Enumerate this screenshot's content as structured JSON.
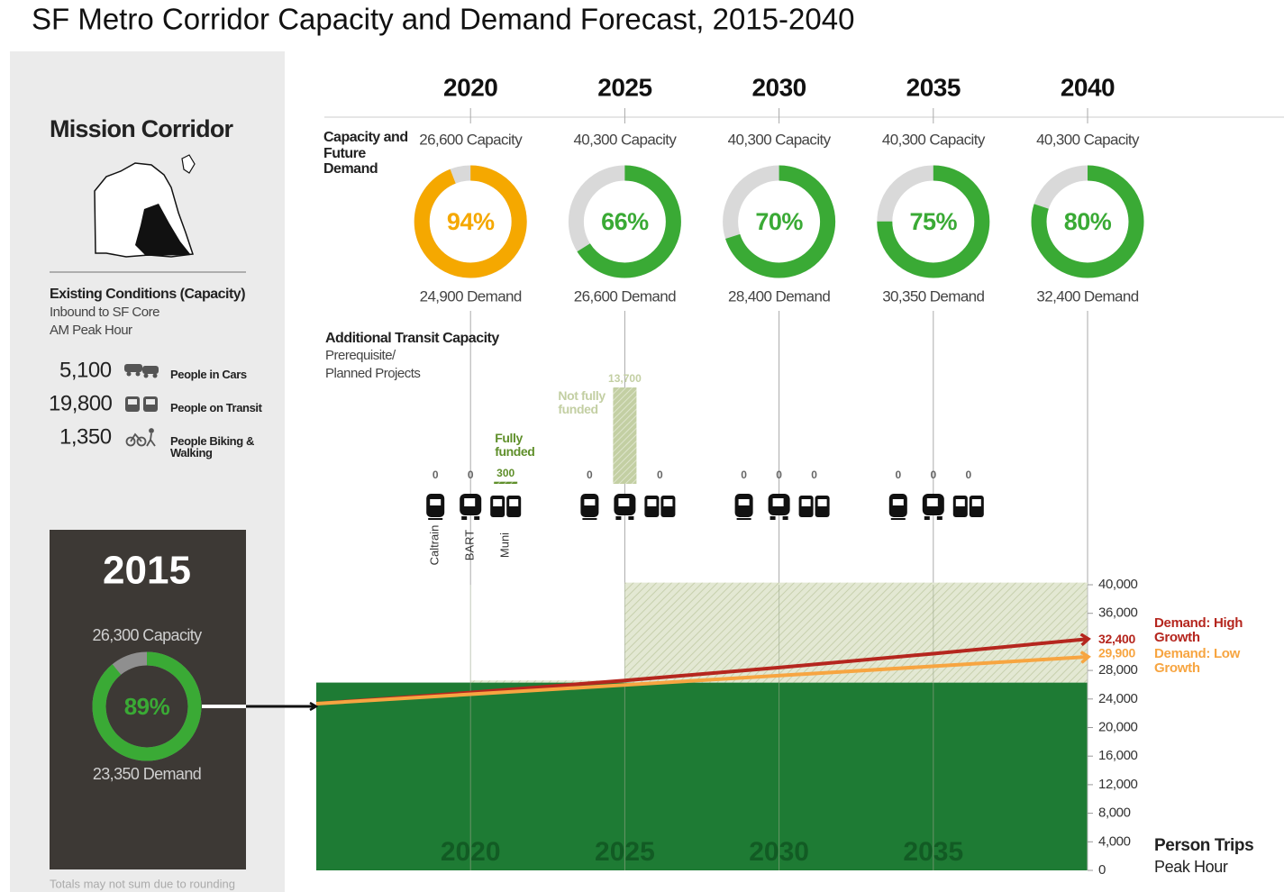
{
  "title": "SF Metro Corridor Capacity and Demand Forecast, 2015-2040",
  "sidebar": {
    "heading": "Mission Corridor",
    "existing_title": "Existing Conditions (Capacity)",
    "existing_lines": [
      "Inbound to SF Core",
      "AM Peak Hour"
    ],
    "modes": [
      {
        "value": "5,100",
        "label": "People in Cars"
      },
      {
        "value": "19,800",
        "label": "People on Transit"
      },
      {
        "value": "1,350",
        "label": "People Biking & Walking"
      }
    ],
    "base": {
      "year": "2015",
      "capacity": "26,300 Capacity",
      "percent": 89,
      "percent_label": "89%",
      "color": "#3aaa35",
      "demand": "23,350 Demand"
    },
    "footnote": "Totals may not sum due to rounding"
  },
  "forecast": {
    "row_label": "Capacity and Future Demand",
    "projects_title": "Additional Transit Capacity",
    "projects_subtitle": [
      "Prerequisite/",
      "Planned Projects"
    ],
    "modes": [
      "Caltrain",
      "BART",
      "Muni"
    ],
    "years": [
      {
        "year": "2020",
        "capacity": "26,600 Capacity",
        "percent": 94,
        "percent_label": "94%",
        "color": "#f5a800",
        "demand": "24,900 Demand",
        "projects": {
          "values": [
            0,
            0,
            300
          ],
          "note": "Fully funded",
          "note_color": "#5f8f2a"
        }
      },
      {
        "year": "2025",
        "capacity": "40,300 Capacity",
        "percent": 66,
        "percent_label": "66%",
        "color": "#3aaa35",
        "demand": "26,600 Demand",
        "projects": {
          "values": [
            0,
            13700,
            0
          ],
          "value_labels": [
            "0",
            "13,700",
            "0"
          ],
          "note": "Not fully funded",
          "note_color": "#c3cfa3"
        }
      },
      {
        "year": "2030",
        "capacity": "40,300 Capacity",
        "percent": 70,
        "percent_label": "70%",
        "color": "#3aaa35",
        "demand": "28,400 Demand",
        "projects": {
          "values": [
            0,
            0,
            0
          ]
        }
      },
      {
        "year": "2035",
        "capacity": "40,300 Capacity",
        "percent": 75,
        "percent_label": "75%",
        "color": "#3aaa35",
        "demand": "30,350 Demand",
        "projects": {
          "values": [
            0,
            0,
            0
          ]
        }
      },
      {
        "year": "2040",
        "capacity": "40,300 Capacity",
        "percent": 80,
        "percent_label": "80%",
        "color": "#3aaa35",
        "demand": "32,400 Demand"
      }
    ]
  },
  "chart_data": {
    "type": "line",
    "xlim": [
      2015,
      2040
    ],
    "xticks": [
      2020,
      2025,
      2030,
      2035
    ],
    "ylim": [
      0,
      40000
    ],
    "yticks": [
      0,
      {
        "value": 4000,
        "label": "4,000"
      },
      {
        "value": 8000,
        "label": "8,000"
      },
      {
        "value": 12000,
        "label": "12,000"
      },
      {
        "value": 16000,
        "label": "16,000"
      },
      {
        "value": 20000,
        "label": "20,000"
      },
      {
        "value": 24000,
        "label": "24,000"
      },
      {
        "value": 28000,
        "label": "28,000"
      },
      {
        "value": 36000,
        "label": "36,000"
      },
      {
        "value": 40000,
        "label": "40,000"
      }
    ],
    "capacity": {
      "base": 26300,
      "color": "#1e7b34",
      "steps": [
        {
          "from": 2020,
          "to": 2025,
          "value": 26600
        },
        {
          "from": 2025,
          "to": 2040,
          "value": 40300
        }
      ]
    },
    "series": [
      {
        "name": "Demand: High Growth",
        "color": "#b5261e",
        "x": [
          2015,
          2020,
          2025,
          2030,
          2035,
          2040
        ],
        "values": [
          23350,
          24900,
          26600,
          28400,
          30350,
          32400
        ],
        "value_labels": [
          null,
          null,
          null,
          null,
          null,
          "32,400"
        ]
      },
      {
        "name": "Demand: Low Growth",
        "color": "#f7a541",
        "x": [
          2015,
          2040
        ],
        "values": [
          23350,
          29900
        ],
        "value_labels": [
          null,
          "29,900"
        ]
      }
    ],
    "y_label": "Person Trips",
    "y_sublabel": "Peak Hour"
  }
}
